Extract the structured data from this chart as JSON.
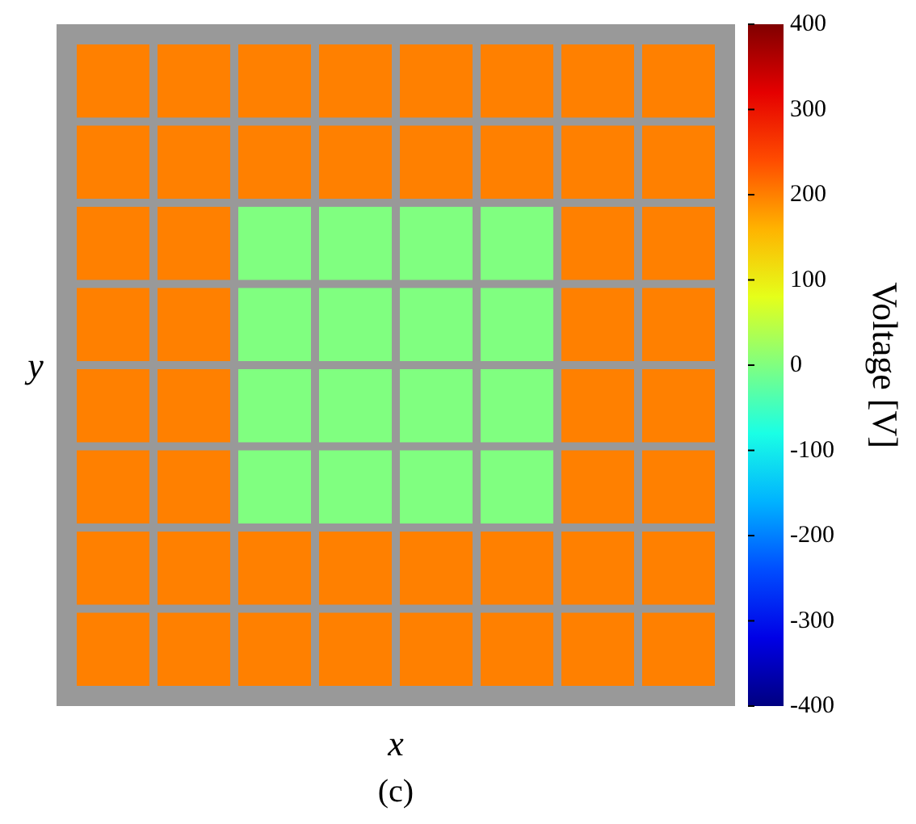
{
  "chart_data": {
    "type": "heatmap",
    "xlabel": "x",
    "ylabel": "y",
    "clabel": "Voltage [V]",
    "annotations": [
      "(c)"
    ],
    "categories": [
      null,
      null,
      null,
      null,
      null,
      null,
      null,
      null
    ],
    "y_categories": [
      null,
      null,
      null,
      null,
      null,
      null,
      null,
      null
    ],
    "cells": [
      [
        200,
        200,
        200,
        200,
        200,
        200,
        200,
        200
      ],
      [
        200,
        200,
        200,
        200,
        200,
        200,
        200,
        200
      ],
      [
        200,
        200,
        0,
        0,
        0,
        0,
        200,
        200
      ],
      [
        200,
        200,
        0,
        0,
        0,
        0,
        200,
        200
      ],
      [
        200,
        200,
        0,
        0,
        0,
        0,
        200,
        200
      ],
      [
        200,
        200,
        0,
        0,
        0,
        0,
        200,
        200
      ],
      [
        200,
        200,
        200,
        200,
        200,
        200,
        200,
        200
      ],
      [
        200,
        200,
        200,
        200,
        200,
        200,
        200,
        200
      ]
    ],
    "clim": [
      -400,
      400
    ],
    "cticks": [
      -400,
      -300,
      -200,
      -100,
      0,
      100,
      200,
      300,
      400
    ]
  }
}
